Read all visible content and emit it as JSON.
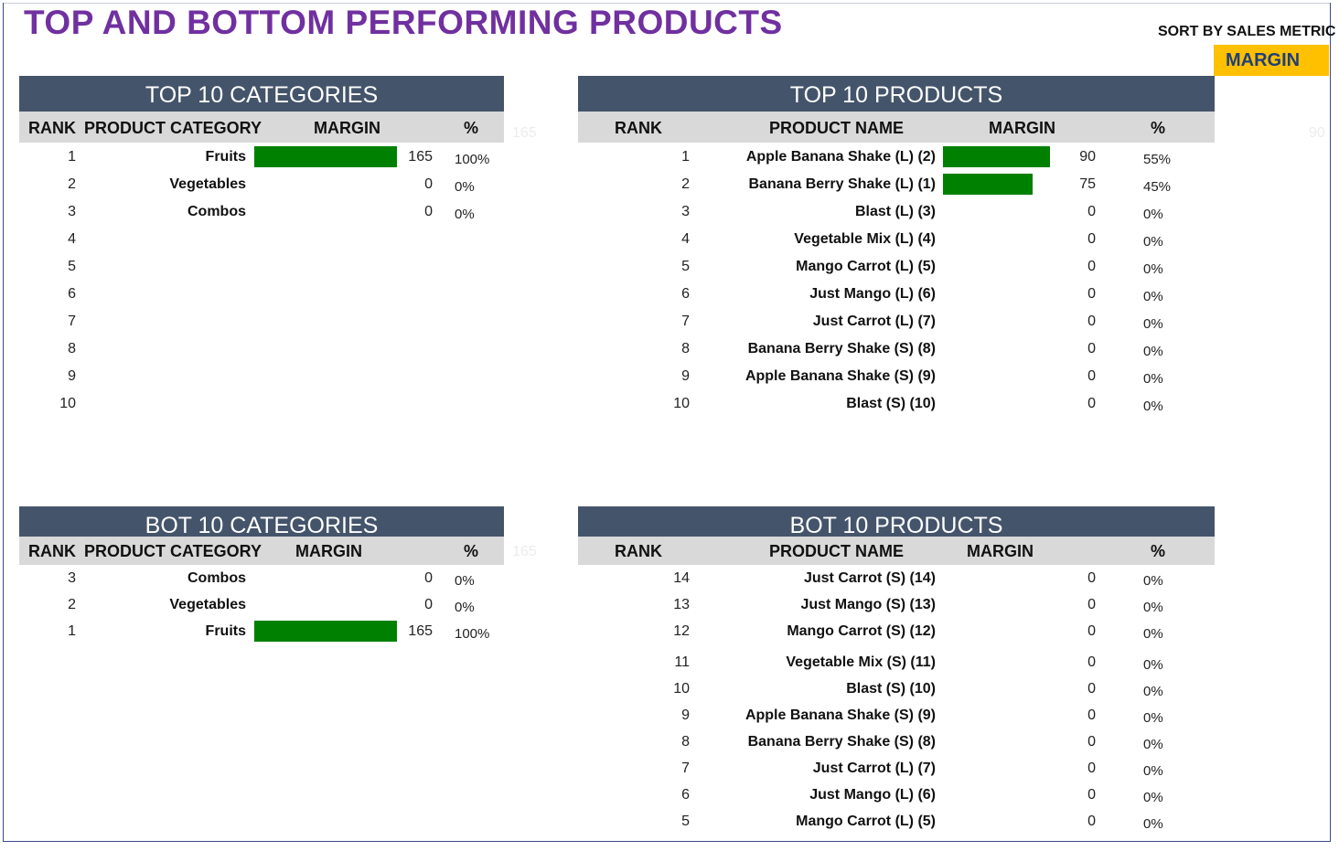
{
  "page_title": "TOP AND BOTTOM PERFORMING PRODUCTS",
  "sort": {
    "label": "SORT BY SALES METRIC",
    "value": "MARGIN"
  },
  "colors": {
    "header_bg": "#44546a",
    "subheader_bg": "#d9d9d9",
    "bar": "#008000",
    "title": "#7030a0",
    "sort_bg": "#ffc000"
  },
  "top_categories": {
    "title": "TOP 10 CATEGORIES",
    "headers": {
      "rank": "RANK",
      "name": "PRODUCT CATEGORY",
      "metric": "MARGIN",
      "pct": "%"
    },
    "ghost_max": "165",
    "max_value": 165,
    "rows": [
      {
        "rank": "1",
        "name": "Fruits",
        "value": "165",
        "pct": "100%",
        "bar": 165
      },
      {
        "rank": "2",
        "name": "Vegetables",
        "value": "0",
        "pct": "0%",
        "bar": 0
      },
      {
        "rank": "3",
        "name": "Combos",
        "value": "0",
        "pct": "0%",
        "bar": 0
      },
      {
        "rank": "4",
        "name": "",
        "value": "",
        "pct": "",
        "bar": 0
      },
      {
        "rank": "5",
        "name": "",
        "value": "",
        "pct": "",
        "bar": 0
      },
      {
        "rank": "6",
        "name": "",
        "value": "",
        "pct": "",
        "bar": 0
      },
      {
        "rank": "7",
        "name": "",
        "value": "",
        "pct": "",
        "bar": 0
      },
      {
        "rank": "8",
        "name": "",
        "value": "",
        "pct": "",
        "bar": 0
      },
      {
        "rank": "9",
        "name": "",
        "value": "",
        "pct": "",
        "bar": 0
      },
      {
        "rank": "10",
        "name": "",
        "value": "",
        "pct": "",
        "bar": 0
      }
    ]
  },
  "top_products": {
    "title": "TOP 10 PRODUCTS",
    "headers": {
      "rank": "RANK",
      "name": "PRODUCT NAME",
      "metric": "MARGIN",
      "pct": "%"
    },
    "ghost_max": "90",
    "max_value": 90,
    "rows": [
      {
        "rank": "1",
        "name": "Apple Banana Shake (L) (2)",
        "value": "90",
        "pct": "55%",
        "bar": 90
      },
      {
        "rank": "2",
        "name": "Banana Berry Shake (L) (1)",
        "value": "75",
        "pct": "45%",
        "bar": 75
      },
      {
        "rank": "3",
        "name": "Blast (L) (3)",
        "value": "0",
        "pct": "0%",
        "bar": 0
      },
      {
        "rank": "4",
        "name": "Vegetable Mix (L) (4)",
        "value": "0",
        "pct": "0%",
        "bar": 0
      },
      {
        "rank": "5",
        "name": "Mango Carrot (L) (5)",
        "value": "0",
        "pct": "0%",
        "bar": 0
      },
      {
        "rank": "6",
        "name": "Just Mango (L) (6)",
        "value": "0",
        "pct": "0%",
        "bar": 0
      },
      {
        "rank": "7",
        "name": "Just Carrot (L) (7)",
        "value": "0",
        "pct": "0%",
        "bar": 0
      },
      {
        "rank": "8",
        "name": "Banana Berry Shake (S) (8)",
        "value": "0",
        "pct": "0%",
        "bar": 0
      },
      {
        "rank": "9",
        "name": "Apple Banana Shake (S) (9)",
        "value": "0",
        "pct": "0%",
        "bar": 0
      },
      {
        "rank": "10",
        "name": "Blast (S) (10)",
        "value": "0",
        "pct": "0%",
        "bar": 0
      }
    ]
  },
  "bot_categories": {
    "title": "BOT 10 CATEGORIES",
    "headers": {
      "rank": "RANK",
      "name": "PRODUCT CATEGORY",
      "metric": "MARGIN",
      "pct": "%"
    },
    "ghost_max": "165",
    "max_value": 165,
    "rows": [
      {
        "rank": "3",
        "name": "Combos",
        "value": "0",
        "pct": "0%",
        "bar": 0
      },
      {
        "rank": "2",
        "name": "Vegetables",
        "value": "0",
        "pct": "0%",
        "bar": 0
      },
      {
        "rank": "1",
        "name": "Fruits",
        "value": "165",
        "pct": "100%",
        "bar": 165
      }
    ]
  },
  "bot_products": {
    "title": "BOT 10 PRODUCTS",
    "headers": {
      "rank": "RANK",
      "name": "PRODUCT NAME",
      "metric": "MARGIN",
      "pct": "%"
    },
    "rows": [
      {
        "rank": "14",
        "name": "Just Carrot (S) (14)",
        "value": "0",
        "pct": "0%",
        "bar": 0
      },
      {
        "rank": "13",
        "name": "Just Mango (S) (13)",
        "value": "0",
        "pct": "0%",
        "bar": 0
      },
      {
        "rank": "12",
        "name": "Mango Carrot (S) (12)",
        "value": "0",
        "pct": "0%",
        "bar": 0
      },
      {
        "rank": "11",
        "name": "Vegetable Mix (S) (11)",
        "value": "0",
        "pct": "0%",
        "bar": 0
      },
      {
        "rank": "10",
        "name": "Blast (S) (10)",
        "value": "0",
        "pct": "0%",
        "bar": 0
      },
      {
        "rank": "9",
        "name": "Apple Banana Shake (S) (9)",
        "value": "0",
        "pct": "0%",
        "bar": 0
      },
      {
        "rank": "8",
        "name": "Banana Berry Shake (S) (8)",
        "value": "0",
        "pct": "0%",
        "bar": 0
      },
      {
        "rank": "7",
        "name": "Just Carrot (L) (7)",
        "value": "0",
        "pct": "0%",
        "bar": 0
      },
      {
        "rank": "6",
        "name": "Just Mango (L) (6)",
        "value": "0",
        "pct": "0%",
        "bar": 0
      },
      {
        "rank": "5",
        "name": "Mango Carrot (L) (5)",
        "value": "0",
        "pct": "0%",
        "bar": 0
      }
    ]
  }
}
